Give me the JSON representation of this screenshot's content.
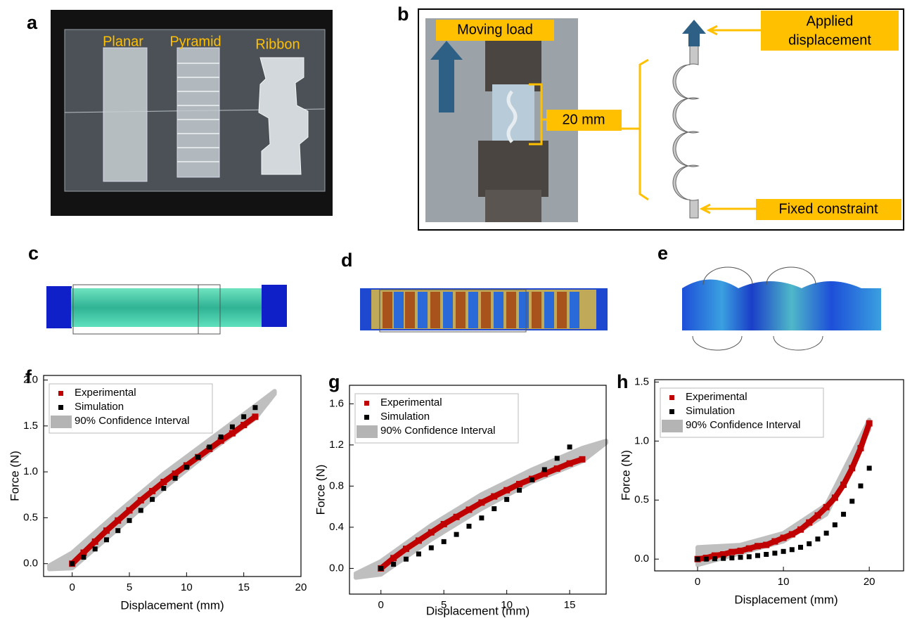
{
  "panel_labels": [
    "a",
    "b",
    "c",
    "d",
    "e",
    "f",
    "g",
    "h"
  ],
  "photo_a": {
    "labels": [
      "Planar",
      "Pyramid",
      "Ribbon"
    ]
  },
  "photo_b": {
    "moving_load": "Moving load",
    "length": "20 mm",
    "applied_displacement": [
      "Applied",
      "displacement"
    ],
    "fixed_constraint": "Fixed constraint"
  },
  "chart_data": [
    {
      "type": "scatter",
      "x_label": "Displacement (mm)",
      "y_label": "Force (N)",
      "legend": "upper left",
      "xlim": [
        -2.5,
        20
      ],
      "xticks": [
        0,
        5,
        10,
        15,
        20
      ],
      "ylim": [
        -0.14,
        2.05
      ],
      "yticks": [
        {
          "value": 0,
          "label": "0.0"
        },
        {
          "value": 0.5,
          "label": "0.5"
        },
        {
          "value": 1,
          "label": "1.0"
        },
        {
          "value": 1.5,
          "label": "1.5"
        },
        {
          "value": 2,
          "label": "2.0"
        }
      ],
      "series": [
        {
          "name": "Experimental",
          "color": "#c00000",
          "style": "thick",
          "x": [
            0,
            1,
            2,
            3,
            4,
            5,
            6,
            7,
            8,
            9,
            10,
            11,
            12,
            13,
            14,
            15,
            16
          ],
          "values": [
            0,
            0.12,
            0.24,
            0.36,
            0.47,
            0.58,
            0.69,
            0.79,
            0.89,
            0.98,
            1.07,
            1.16,
            1.25,
            1.34,
            1.42,
            1.51,
            1.6
          ]
        },
        {
          "name": "Simulation",
          "color": "#000000",
          "style": "markers",
          "x": [
            0,
            1,
            2,
            3,
            4,
            5,
            6,
            7,
            8,
            9,
            10,
            11,
            12,
            13,
            14,
            15,
            16
          ],
          "values": [
            0,
            0.07,
            0.16,
            0.26,
            0.36,
            0.47,
            0.58,
            0.7,
            0.82,
            0.93,
            1.05,
            1.16,
            1.27,
            1.38,
            1.49,
            1.6,
            1.7
          ]
        },
        {
          "name": "90% Confidence Interval",
          "color": "#b4b4b4",
          "style": "band",
          "x": [
            -2,
            0,
            4,
            8,
            12,
            16,
            17.7
          ],
          "upper": [
            -0.02,
            0.12,
            0.56,
            0.98,
            1.35,
            1.72,
            1.88
          ],
          "lower": [
            -0.06,
            -0.05,
            0.38,
            0.82,
            1.22,
            1.58,
            1.85
          ]
        }
      ]
    },
    {
      "type": "scatter",
      "x_label": "Displacement (mm)",
      "y_label": "Force (N)",
      "legend": "upper left",
      "xlim": [
        -2.5,
        17.9
      ],
      "xticks": [
        0,
        5,
        10,
        15
      ],
      "ylim": [
        -0.25,
        1.78
      ],
      "yticks": [
        {
          "value": 0,
          "label": "0.0"
        },
        {
          "value": 0.4,
          "label": "0.4"
        },
        {
          "value": 0.8,
          "label": "0.8"
        },
        {
          "value": 1.2,
          "label": "1.2"
        },
        {
          "value": 1.6,
          "label": "1.6"
        }
      ],
      "series": [
        {
          "name": "Experimental",
          "color": "#c00000",
          "style": "thick",
          "x": [
            0,
            1,
            2,
            3,
            4,
            5,
            6,
            7,
            8,
            9,
            10,
            11,
            12,
            13,
            14,
            15,
            16
          ],
          "values": [
            0,
            0.1,
            0.19,
            0.27,
            0.35,
            0.43,
            0.5,
            0.57,
            0.64,
            0.7,
            0.76,
            0.82,
            0.87,
            0.92,
            0.97,
            1.02,
            1.06
          ]
        },
        {
          "name": "Simulation",
          "color": "#000000",
          "style": "markers",
          "x": [
            0,
            1,
            2,
            3,
            4,
            5,
            6,
            7,
            8,
            9,
            10,
            11,
            12,
            13,
            14,
            15
          ],
          "values": [
            0,
            0.04,
            0.09,
            0.14,
            0.2,
            0.26,
            0.33,
            0.41,
            0.49,
            0.58,
            0.67,
            0.76,
            0.86,
            0.96,
            1.07,
            1.18
          ]
        },
        {
          "name": "90% Confidence Interval",
          "color": "#b4b4b4",
          "style": "band",
          "x": [
            -2,
            0,
            4,
            8,
            12,
            16,
            17.9
          ],
          "upper": [
            -0.05,
            0.07,
            0.42,
            0.72,
            0.96,
            1.17,
            1.24
          ],
          "lower": [
            -0.09,
            -0.06,
            0.28,
            0.58,
            0.84,
            1.04,
            1.22
          ]
        }
      ]
    },
    {
      "type": "scatter",
      "x_label": "Displacement (mm)",
      "y_label": "Force (N)",
      "legend": "upper left",
      "xlim": [
        -5,
        24
      ],
      "xticks": [
        0,
        10,
        20
      ],
      "ylim": [
        -0.1,
        1.52
      ],
      "yticks": [
        {
          "value": 0,
          "label": "0.0"
        },
        {
          "value": 0.5,
          "label": "0.5"
        },
        {
          "value": 1,
          "label": "1.0"
        },
        {
          "value": 1.5,
          "label": "1.5"
        }
      ],
      "series": [
        {
          "name": "Experimental",
          "color": "#c00000",
          "style": "thick",
          "x": [
            0,
            1,
            2,
            3,
            4,
            5,
            6,
            7,
            8,
            9,
            10,
            11,
            12,
            13,
            14,
            15,
            16,
            17,
            18,
            19,
            20
          ],
          "values": [
            0,
            0.01,
            0.03,
            0.04,
            0.06,
            0.07,
            0.09,
            0.11,
            0.12,
            0.15,
            0.18,
            0.21,
            0.25,
            0.31,
            0.37,
            0.44,
            0.52,
            0.63,
            0.77,
            0.94,
            1.15
          ]
        },
        {
          "name": "Simulation",
          "color": "#000000",
          "style": "markers",
          "x": [
            0,
            1,
            2,
            3,
            4,
            5,
            6,
            7,
            8,
            9,
            10,
            11,
            12,
            13,
            14,
            15,
            16,
            17,
            18,
            19,
            20
          ],
          "values": [
            0,
            0,
            0.003,
            0.006,
            0.01,
            0.015,
            0.02,
            0.03,
            0.04,
            0.05,
            0.065,
            0.08,
            0.1,
            0.13,
            0.17,
            0.22,
            0.29,
            0.38,
            0.49,
            0.62,
            0.77
          ]
        },
        {
          "name": "90% Confidence Interval",
          "color": "#b4b4b4",
          "style": "band",
          "x": [
            0,
            5,
            10,
            15,
            20
          ],
          "upper": [
            0.1,
            0.12,
            0.22,
            0.46,
            1.18
          ],
          "lower": [
            -0.05,
            0.05,
            0.15,
            0.38,
            1.1
          ]
        }
      ]
    }
  ]
}
